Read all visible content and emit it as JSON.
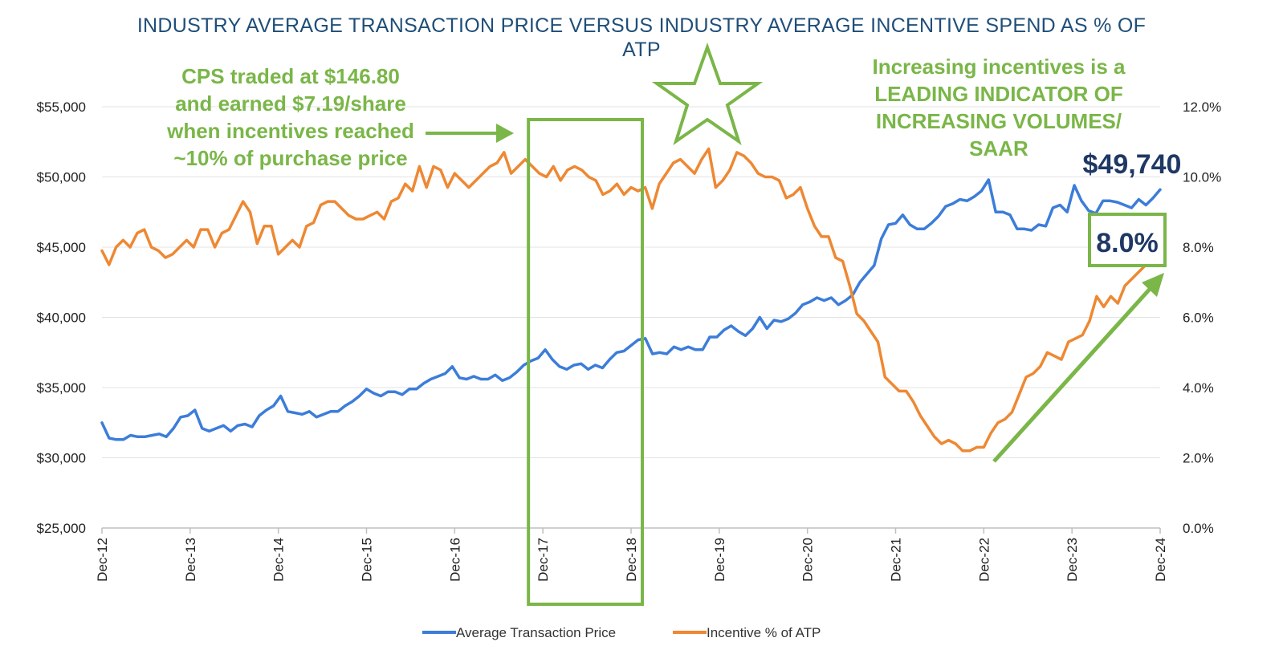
{
  "title_lines": [
    "INDUSTRY AVERAGE TRANSACTION PRICE VERSUS INDUSTRY AVERAGE INCENTIVE SPEND AS % OF",
    "ATP"
  ],
  "annotations": {
    "left_text": [
      "CPS traded at $146.80",
      "and earned $7.19/share",
      "when incentives reached",
      "~10% of purchase price"
    ],
    "right_text": [
      "Increasing incentives is a",
      "LEADING INDICATOR OF",
      "INCREASING VOLUMES/",
      "SAAR"
    ],
    "atp_callout": "$49,740",
    "incentive_callout": "8.0%"
  },
  "colors": {
    "atp": "#3c7dd9",
    "incentive": "#ee8833",
    "annotation": "#7ab648",
    "title": "#1f4e79",
    "callout": "#1f3864"
  },
  "chart_data": {
    "type": "line",
    "x_labels": [
      "Dec-12",
      "Dec-13",
      "Dec-14",
      "Dec-15",
      "Dec-16",
      "Dec-17",
      "Dec-18",
      "Dec-19",
      "Dec-20",
      "Dec-21",
      "Dec-22",
      "Dec-23",
      "Dec-24"
    ],
    "y_left": {
      "min": 25000,
      "max": 55000,
      "ticks": [
        "$25,000",
        "$30,000",
        "$35,000",
        "$40,000",
        "$45,000",
        "$50,000",
        "$55,000"
      ]
    },
    "y_right": {
      "min": 0,
      "max": 12,
      "ticks": [
        "0.0%",
        "2.0%",
        "4.0%",
        "6.0%",
        "8.0%",
        "10.0%",
        "12.0%"
      ]
    },
    "legend_position": "bottom",
    "highlight_range": [
      "Dec-17",
      "Dec-18"
    ],
    "series": [
      {
        "name": "Average Transaction Price",
        "axis": "left",
        "values": [
          32500,
          31400,
          31300,
          31300,
          31600,
          31500,
          31500,
          31600,
          31700,
          31500,
          32100,
          32900,
          33000,
          33400,
          32100,
          31900,
          32100,
          32300,
          31900,
          32300,
          32400,
          32200,
          33000,
          33400,
          33700,
          34400,
          33300,
          33200,
          33100,
          33300,
          32900,
          33100,
          33300,
          33300,
          33700,
          34000,
          34400,
          34900,
          34600,
          34400,
          34700,
          34700,
          34500,
          34900,
          34900,
          35300,
          35600,
          35800,
          36000,
          36500,
          35700,
          35600,
          35800,
          35600,
          35600,
          35900,
          35500,
          35700,
          36100,
          36600,
          36900,
          37100,
          37700,
          37000,
          36500,
          36300,
          36600,
          36700,
          36300,
          36600,
          36400,
          37000,
          37500,
          37600,
          38000,
          38400,
          38500,
          37400,
          37500,
          37400,
          37900,
          37700,
          37900,
          37700,
          37700,
          38600,
          38600,
          39100,
          39400,
          39000,
          38700,
          39200,
          40000,
          39200,
          39800,
          39700,
          39900,
          40300,
          40900,
          41100,
          41400,
          41200,
          41400,
          40900,
          41200,
          41600,
          42500,
          43100,
          43700,
          45600,
          46600,
          46700,
          47300,
          46600,
          46300,
          46300,
          46700,
          47200,
          47900,
          48100,
          48400,
          48300,
          48600,
          49000,
          49800,
          47500,
          47500,
          47300,
          46300,
          46300,
          46200,
          46600,
          46500,
          47800,
          48000,
          47500,
          49400,
          48300,
          47600,
          47400,
          48300,
          48300,
          48200,
          48000,
          47800,
          48400,
          48000,
          48500,
          49100
        ]
      },
      {
        "name": "Incentive % of ATP",
        "axis": "right",
        "values": [
          7.9,
          7.5,
          8.0,
          8.2,
          8.0,
          8.4,
          8.5,
          8.0,
          7.9,
          7.7,
          7.8,
          8.0,
          8.2,
          8.0,
          8.5,
          8.5,
          8.0,
          8.4,
          8.5,
          8.9,
          9.3,
          9.0,
          8.1,
          8.6,
          8.6,
          7.8,
          8.0,
          8.2,
          8.0,
          8.6,
          8.7,
          9.2,
          9.3,
          9.3,
          9.1,
          8.9,
          8.8,
          8.8,
          8.9,
          9.0,
          8.8,
          9.3,
          9.4,
          9.8,
          9.6,
          10.3,
          9.7,
          10.3,
          10.2,
          9.7,
          10.1,
          9.9,
          9.7,
          9.9,
          10.1,
          10.3,
          10.4,
          10.7,
          10.1,
          10.3,
          10.5,
          10.3,
          10.1,
          10.0,
          10.3,
          9.9,
          10.2,
          10.3,
          10.2,
          10.0,
          9.9,
          9.5,
          9.6,
          9.8,
          9.5,
          9.7,
          9.6,
          9.7,
          9.1,
          9.8,
          10.1,
          10.4,
          10.5,
          10.3,
          10.1,
          10.5,
          10.8,
          9.7,
          9.9,
          10.2,
          10.7,
          10.6,
          10.4,
          10.1,
          10.0,
          10.0,
          9.9,
          9.4,
          9.5,
          9.7,
          9.1,
          8.6,
          8.3,
          8.3,
          7.7,
          7.6,
          6.9,
          6.1,
          5.9,
          5.6,
          5.3,
          4.3,
          4.1,
          3.9,
          3.9,
          3.6,
          3.2,
          2.9,
          2.6,
          2.4,
          2.5,
          2.4,
          2.2,
          2.2,
          2.3,
          2.3,
          2.7,
          3.0,
          3.1,
          3.3,
          3.8,
          4.3,
          4.4,
          4.6,
          5.0,
          4.9,
          4.8,
          5.3,
          5.4,
          5.5,
          5.9,
          6.6,
          6.3,
          6.6,
          6.4,
          6.9,
          7.1,
          7.3,
          7.5,
          7.8,
          8.0
        ]
      }
    ]
  }
}
